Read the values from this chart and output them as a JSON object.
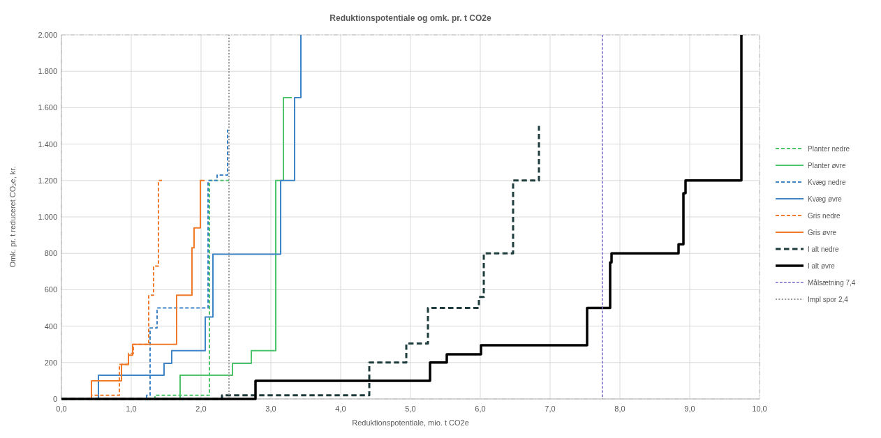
{
  "chart_data": {
    "type": "step",
    "title": "Reduktionspotentiale og omk. pr. t CO2e",
    "xlabel": "Reduktionspotentiale, mio. t CO2e",
    "ylabel": "Omk. pr. t reduceret CO₂e, kr.",
    "xlim": [
      0,
      10
    ],
    "xticks": [
      {
        "value": 0,
        "label": "0,0"
      },
      {
        "value": 1,
        "label": "1,0"
      },
      {
        "value": 2,
        "label": "2,0"
      },
      {
        "value": 3,
        "label": "3,0"
      },
      {
        "value": 4,
        "label": "4,0"
      },
      {
        "value": 5,
        "label": "5,0"
      },
      {
        "value": 6,
        "label": "6,0"
      },
      {
        "value": 7,
        "label": "7,0"
      },
      {
        "value": 8,
        "label": "8,0"
      },
      {
        "value": 9,
        "label": "9,0"
      },
      {
        "value": 10,
        "label": "10,0"
      }
    ],
    "ylim": [
      0,
      2000
    ],
    "yticks": [
      0,
      200,
      400,
      600,
      800,
      {
        "value": 1000,
        "label": "1.000"
      },
      {
        "value": 1200,
        "label": "1.200"
      },
      {
        "value": 1400,
        "label": "1.400"
      },
      {
        "value": 1600,
        "label": "1.600"
      },
      {
        "value": 1800,
        "label": "1.800"
      },
      {
        "value": 2000,
        "label": "2.000"
      }
    ],
    "grid": true,
    "legend": "right",
    "marker": "none",
    "series": [
      {
        "name": "Planter nedre",
        "color": "#4cc46a",
        "line_style": "dashed",
        "x": [
          0,
          1.34,
          2.12,
          2.4
        ],
        "values": [
          0,
          20,
          1200,
          1200
        ]
      },
      {
        "name": "Planter øvre",
        "color": "#4cc46a",
        "line_style": "solid",
        "x": [
          0,
          1.7,
          2.45,
          2.72,
          3.07,
          3.18,
          3.3
        ],
        "values": [
          0,
          130,
          195,
          265,
          1200,
          1655,
          1655
        ]
      },
      {
        "name": "Kvæg nedre",
        "color": "#3d85c6",
        "line_style": "dashed",
        "x": [
          0,
          1.22,
          1.27,
          1.37,
          2.1,
          2.23,
          2.38
        ],
        "values": [
          0,
          20,
          390,
          500,
          1200,
          1230,
          1480
        ]
      },
      {
        "name": "Kvæg øvre",
        "color": "#3d85c6",
        "line_style": "solid",
        "x": [
          0,
          0.53,
          1.47,
          1.58,
          2.06,
          2.17,
          3.14,
          3.34,
          3.43
        ],
        "values": [
          0,
          130,
          195,
          265,
          450,
          795,
          1200,
          1655,
          2000
        ]
      },
      {
        "name": "Gris nedre",
        "color": "#f07a2a",
        "line_style": "dashed",
        "x": [
          0,
          0.43,
          0.83,
          0.96,
          1.03,
          1.25,
          1.32,
          1.39,
          1.44
        ],
        "values": [
          0,
          20,
          190,
          250,
          300,
          570,
          730,
          1200,
          1200
        ]
      },
      {
        "name": "Gris øvre",
        "color": "#f07a2a",
        "line_style": "solid",
        "x": [
          0,
          0.43,
          0.86,
          0.96,
          1.02,
          1.65,
          1.87,
          1.9,
          1.99,
          2.05
        ],
        "values": [
          0,
          100,
          190,
          240,
          300,
          570,
          830,
          940,
          1200,
          1200
        ]
      },
      {
        "name": "I alt nedre",
        "color": "#1e3c3c",
        "line_style": "dashed",
        "x": [
          0,
          2.3,
          4.41,
          4.94,
          5.25,
          5.98,
          6.05,
          6.47,
          6.84
        ],
        "values": [
          0,
          20,
          200,
          305,
          500,
          560,
          800,
          1200,
          1500
        ]
      },
      {
        "name": "I alt øvre",
        "color": "#000000",
        "line_style": "solid",
        "x": [
          0,
          2.78,
          5.28,
          5.52,
          6.01,
          7.53,
          7.86,
          7.88,
          8.84,
          8.91,
          8.94,
          9.74
        ],
        "values": [
          0,
          100,
          200,
          245,
          295,
          500,
          750,
          800,
          850,
          1130,
          1200,
          2000
        ]
      },
      {
        "name": "Målsætning 7,4",
        "color": "#7b68c8",
        "line_style": "dashed",
        "x": [
          7.75,
          7.75
        ],
        "values": [
          0,
          2000
        ]
      },
      {
        "name": "Impl spor 2,4",
        "color": "#999999",
        "line_style": "dotted",
        "x": [
          2.4,
          2.4
        ],
        "values": [
          0,
          2000
        ]
      }
    ]
  }
}
